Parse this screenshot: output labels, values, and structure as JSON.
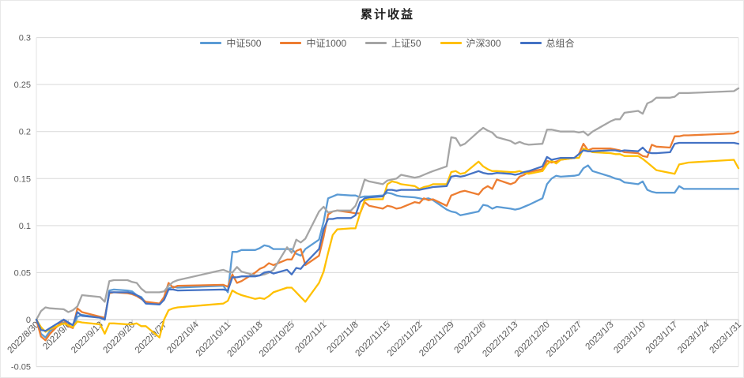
{
  "title": "累计收益",
  "chart_data": {
    "type": "line",
    "title": "累计收益",
    "legend_position": "top-center",
    "grid": "horizontal",
    "background": "#ffffff",
    "gridline_color": "#d9d9d9",
    "axis_label_color": "#595959",
    "y_axis": {
      "range": [
        -0.05,
        0.3
      ],
      "tick_labels": [
        "0.3",
        "0.25",
        "0.2",
        "0.15",
        "0.1",
        "0.05",
        "0",
        "-0.05"
      ],
      "tick_values": [
        0.3,
        0.25,
        0.2,
        0.15,
        0.1,
        0.05,
        0,
        -0.05
      ]
    },
    "x_axis": {
      "type": "date",
      "range": [
        "2022/8/30",
        "2023/1/31"
      ],
      "tick_labels": [
        "2022/8/30",
        "2022/9/6",
        "2022/9/13",
        "2022/9/20",
        "2022/9/27",
        "2022/10/4",
        "2022/10/11",
        "2022/10/18",
        "2022/10/25",
        "2022/11/1",
        "2022/11/8",
        "2022/11/15",
        "2022/11/22",
        "2022/11/29",
        "2022/12/6",
        "2022/12/13",
        "2022/12/20",
        "2022/12/27",
        "2023/1/3",
        "2023/1/10",
        "2023/1/17",
        "2023/1/24",
        "2023/1/31"
      ]
    },
    "dates": [
      "2022/8/30",
      "2022/8/31",
      "2022/9/1",
      "2022/9/2",
      "2022/9/5",
      "2022/9/6",
      "2022/9/7",
      "2022/9/8",
      "2022/9/9",
      "2022/9/13",
      "2022/9/14",
      "2022/9/15",
      "2022/9/16",
      "2022/9/19",
      "2022/9/20",
      "2022/9/21",
      "2022/9/22",
      "2022/9/23",
      "2022/9/26",
      "2022/9/27",
      "2022/9/28",
      "2022/9/29",
      "2022/9/30",
      "2022/10/10",
      "2022/10/11",
      "2022/10/12",
      "2022/10/13",
      "2022/10/14",
      "2022/10/17",
      "2022/10/18",
      "2022/10/19",
      "2022/10/20",
      "2022/10/21",
      "2022/10/24",
      "2022/10/25",
      "2022/10/26",
      "2022/10/27",
      "2022/10/28",
      "2022/10/31",
      "2022/11/1",
      "2022/11/2",
      "2022/11/3",
      "2022/11/4",
      "2022/11/7",
      "2022/11/8",
      "2022/11/9",
      "2022/11/10",
      "2022/11/11",
      "2022/11/14",
      "2022/11/15",
      "2022/11/16",
      "2022/11/17",
      "2022/11/18",
      "2022/11/21",
      "2022/11/22",
      "2022/11/23",
      "2022/11/24",
      "2022/11/25",
      "2022/11/28",
      "2022/11/29",
      "2022/11/30",
      "2022/12/1",
      "2022/12/2",
      "2022/12/5",
      "2022/12/6",
      "2022/12/7",
      "2022/12/8",
      "2022/12/9",
      "2022/12/12",
      "2022/12/13",
      "2022/12/14",
      "2022/12/15",
      "2022/12/16",
      "2022/12/19",
      "2022/12/20",
      "2022/12/21",
      "2022/12/22",
      "2022/12/23",
      "2022/12/26",
      "2022/12/27",
      "2022/12/28",
      "2022/12/29",
      "2022/12/30",
      "2023/1/3",
      "2023/1/4",
      "2023/1/5",
      "2023/1/6",
      "2023/1/9",
      "2023/1/10",
      "2023/1/11",
      "2023/1/12",
      "2023/1/13",
      "2023/1/16",
      "2023/1/17",
      "2023/1/18",
      "2023/1/19",
      "2023/1/20",
      "2023/1/30",
      "2023/1/31"
    ],
    "series": [
      {
        "name": "中证500",
        "color": "#5B9BD5",
        "values": [
          0,
          -0.015,
          -0.019,
          -0.012,
          -0.003,
          -0.006,
          -0.009,
          0.003,
          0.005,
          0.002,
          0,
          0.031,
          0.032,
          0.031,
          0.03,
          0.026,
          0.024,
          0.018,
          0.016,
          0.022,
          0.033,
          0.035,
          0.034,
          0.036,
          0.029,
          0.072,
          0.072,
          0.074,
          0.074,
          0.076,
          0.079,
          0.078,
          0.075,
          0.075,
          0.075,
          0.07,
          0.068,
          0.075,
          0.085,
          0.104,
          0.129,
          0.131,
          0.133,
          0.132,
          0.132,
          0.13,
          0.131,
          0.131,
          0.132,
          0.135,
          0.134,
          0.132,
          0.131,
          0.13,
          0.129,
          0.128,
          0.129,
          0.127,
          0.117,
          0.115,
          0.114,
          0.111,
          0.112,
          0.115,
          0.122,
          0.121,
          0.118,
          0.12,
          0.118,
          0.117,
          0.118,
          0.12,
          0.122,
          0.129,
          0.144,
          0.15,
          0.153,
          0.152,
          0.153,
          0.154,
          0.161,
          0.164,
          0.158,
          0.152,
          0.15,
          0.149,
          0.146,
          0.144,
          0.147,
          0.138,
          0.136,
          0.135,
          0.135,
          0.135,
          0.142,
          0.139,
          0.139,
          0.139,
          0.139
        ]
      },
      {
        "name": "中证1000",
        "color": "#ED7D31",
        "values": [
          0,
          -0.018,
          -0.022,
          -0.015,
          0,
          -0.007,
          -0.009,
          0.012,
          0.008,
          0.003,
          0.002,
          0.028,
          0.029,
          0.028,
          0.027,
          0.025,
          0.022,
          0.019,
          0.017,
          0.024,
          0.039,
          0.034,
          0.036,
          0.037,
          0.035,
          0.048,
          0.039,
          0.041,
          0.05,
          0.054,
          0.056,
          0.06,
          0.058,
          0.064,
          0.064,
          0.073,
          0.075,
          0.058,
          0.068,
          0.088,
          0.112,
          0.115,
          0.116,
          0.114,
          0.113,
          0.113,
          0.125,
          0.121,
          0.118,
          0.121,
          0.12,
          0.118,
          0.119,
          0.125,
          0.124,
          0.129,
          0.127,
          0.128,
          0.121,
          0.132,
          0.134,
          0.136,
          0.137,
          0.133,
          0.139,
          0.142,
          0.139,
          0.149,
          0.144,
          0.146,
          0.152,
          0.154,
          0.157,
          0.16,
          0.169,
          0.167,
          0.168,
          0.17,
          0.172,
          0.176,
          0.187,
          0.18,
          0.182,
          0.182,
          0.181,
          0.18,
          0.178,
          0.177,
          0.174,
          0.173,
          0.186,
          0.184,
          0.183,
          0.195,
          0.195,
          0.196,
          0.196,
          0.198,
          0.2
        ]
      },
      {
        "name": "上证50",
        "color": "#A5A5A5",
        "values": [
          0,
          0.009,
          0.013,
          0.012,
          0.011,
          0.008,
          0.01,
          0.014,
          0.026,
          0.024,
          0.019,
          0.041,
          0.042,
          0.042,
          0.04,
          0.039,
          0.033,
          0.029,
          0.029,
          0.03,
          0.036,
          0.04,
          0.042,
          0.053,
          0.051,
          0.05,
          0.056,
          0.051,
          0.047,
          0.047,
          0.048,
          0.05,
          0.053,
          0.077,
          0.071,
          0.085,
          0.082,
          0.086,
          0.115,
          0.12,
          0.114,
          0.115,
          0.116,
          0.116,
          0.121,
          0.133,
          0.149,
          0.147,
          0.144,
          0.148,
          0.149,
          0.15,
          0.154,
          0.151,
          0.152,
          0.154,
          0.156,
          0.158,
          0.163,
          0.194,
          0.193,
          0.185,
          0.187,
          0.2,
          0.204,
          0.201,
          0.199,
          0.194,
          0.19,
          0.187,
          0.189,
          0.187,
          0.186,
          0.187,
          0.202,
          0.202,
          0.201,
          0.2,
          0.2,
          0.199,
          0.2,
          0.196,
          0.2,
          0.211,
          0.213,
          0.213,
          0.22,
          0.222,
          0.219,
          0.23,
          0.232,
          0.236,
          0.236,
          0.237,
          0.241,
          0.241,
          0.241,
          0.243,
          0.246
        ]
      },
      {
        "name": "沪深300",
        "color": "#FFC000",
        "values": [
          0,
          -0.008,
          -0.013,
          -0.01,
          -0.004,
          -0.006,
          -0.008,
          -0.002,
          -0.003,
          -0.005,
          -0.015,
          -0.004,
          -0.004,
          -0.005,
          -0.005,
          -0.004,
          -0.007,
          -0.007,
          -0.019,
          0,
          0.01,
          0.012,
          0.013,
          0.017,
          0.02,
          0.031,
          0.028,
          0.026,
          0.022,
          0.023,
          0.022,
          0.025,
          0.029,
          0.034,
          0.034,
          0.029,
          0.024,
          0.019,
          0.039,
          0.051,
          0.071,
          0.09,
          0.096,
          0.097,
          0.097,
          0.113,
          0.127,
          0.128,
          0.128,
          0.144,
          0.147,
          0.146,
          0.144,
          0.142,
          0.139,
          0.141,
          0.142,
          0.144,
          0.144,
          0.157,
          0.158,
          0.155,
          0.156,
          0.168,
          0.163,
          0.16,
          0.158,
          0.158,
          0.157,
          0.157,
          0.158,
          0.156,
          0.155,
          0.158,
          0.165,
          0.169,
          0.166,
          0.17,
          0.172,
          0.172,
          0.182,
          0.18,
          0.178,
          0.177,
          0.176,
          0.176,
          0.174,
          0.174,
          0.171,
          0.167,
          0.163,
          0.159,
          0.156,
          0.155,
          0.165,
          0.166,
          0.167,
          0.17,
          0.161
        ]
      },
      {
        "name": "总组合",
        "color": "#4472C4",
        "values": [
          0,
          -0.011,
          -0.012,
          -0.009,
          0,
          -0.003,
          -0.006,
          0.008,
          0.004,
          0.002,
          0,
          0.029,
          0.029,
          0.029,
          0.028,
          0.026,
          0.023,
          0.017,
          0.016,
          0.021,
          0.032,
          0.032,
          0.031,
          0.032,
          0.031,
          0.045,
          0.045,
          0.046,
          0.046,
          0.047,
          0.05,
          0.051,
          0.049,
          0.053,
          0.048,
          0.055,
          0.054,
          0.06,
          0.075,
          0.096,
          0.107,
          0.107,
          0.108,
          0.108,
          0.111,
          0.125,
          0.129,
          0.13,
          0.131,
          0.138,
          0.138,
          0.137,
          0.138,
          0.138,
          0.138,
          0.139,
          0.14,
          0.141,
          0.142,
          0.152,
          0.153,
          0.152,
          0.153,
          0.158,
          0.156,
          0.155,
          0.155,
          0.156,
          0.155,
          0.154,
          0.155,
          0.157,
          0.158,
          0.163,
          0.173,
          0.17,
          0.171,
          0.172,
          0.172,
          0.176,
          0.18,
          0.179,
          0.179,
          0.18,
          0.18,
          0.179,
          0.18,
          0.179,
          0.183,
          0.178,
          0.177,
          0.177,
          0.178,
          0.187,
          0.188,
          0.188,
          0.188,
          0.188,
          0.187
        ]
      }
    ]
  }
}
